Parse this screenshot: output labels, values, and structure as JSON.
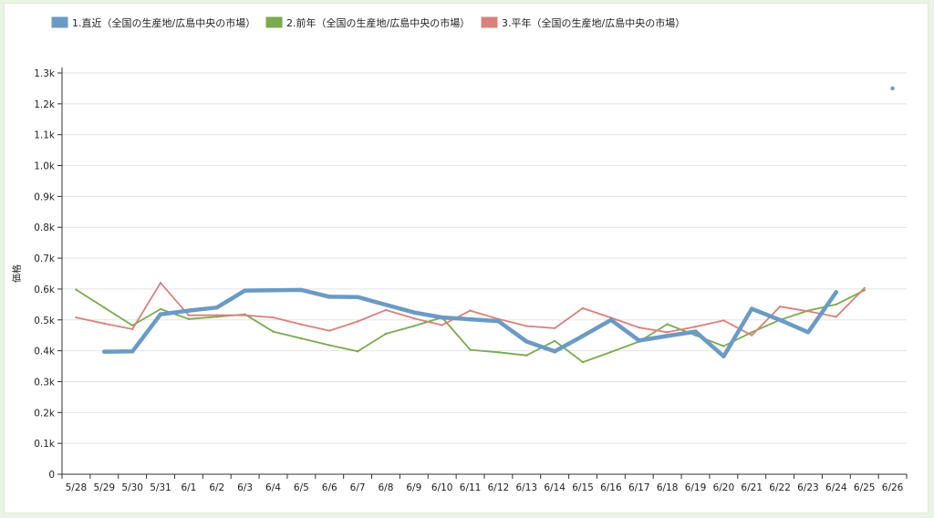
{
  "chart_data": {
    "type": "line",
    "ylabel": "価格",
    "xlabel": "",
    "ylim": [
      0,
      1300
    ],
    "y_ticks": [
      "0",
      "0.1k",
      "0.2k",
      "0.3k",
      "0.4k",
      "0.5k",
      "0.6k",
      "0.7k",
      "0.8k",
      "0.9k",
      "1.0k",
      "1.1k",
      "1.2k",
      "1.3k"
    ],
    "y_tick_values": [
      0,
      100,
      200,
      300,
      400,
      500,
      600,
      700,
      800,
      900,
      1000,
      1100,
      1200,
      1300
    ],
    "grid": true,
    "legend_position": "top-left",
    "categories": [
      "5/28",
      "5/29",
      "5/30",
      "5/31",
      "6/1",
      "6/2",
      "6/3",
      "6/4",
      "6/5",
      "6/6",
      "6/7",
      "6/8",
      "6/9",
      "6/10",
      "6/11",
      "6/12",
      "6/13",
      "6/14",
      "6/15",
      "6/16",
      "6/17",
      "6/18",
      "6/19",
      "6/20",
      "6/21",
      "6/22",
      "6/23",
      "6/24",
      "6/25",
      "6/26"
    ],
    "series": [
      {
        "name": "1.直近（全国の生産地/広島中央の市場）",
        "color": "#6b9ac4",
        "values": [
          null,
          397,
          398,
          518,
          530,
          540,
          595,
          596,
          597,
          575,
          574,
          549,
          524,
          508,
          502,
          496,
          430,
          398,
          448,
          500,
          433,
          448,
          462,
          382,
          536,
          500,
          460,
          590,
          null,
          1250
        ]
      },
      {
        "name": "2.前年（全国の生産地/広島中央の市場）",
        "color": "#7aab4e",
        "values": [
          598,
          540,
          482,
          535,
          503,
          510,
          518,
          462,
          440,
          418,
          398,
          455,
          480,
          508,
          403,
          395,
          385,
          432,
          363,
          396,
          430,
          486,
          450,
          415,
          460,
          500,
          530,
          550,
          596,
          null
        ]
      },
      {
        "name": "3.平年（全国の生産地/広島中央の市場）",
        "color": "#d9817a",
        "values": [
          508,
          488,
          470,
          620,
          515,
          515,
          515,
          508,
          485,
          465,
          495,
          532,
          505,
          483,
          530,
          503,
          480,
          473,
          538,
          507,
          475,
          460,
          478,
          498,
          450,
          543,
          528,
          510,
          603,
          null
        ]
      }
    ]
  }
}
